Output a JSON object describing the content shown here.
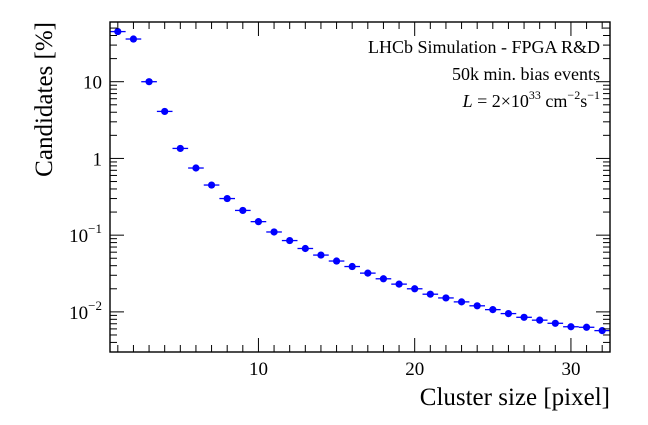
{
  "chart_data": {
    "type": "scatter",
    "xlabel": "Cluster size [pixel]",
    "ylabel": "Candidates [%]",
    "y_scale": "log",
    "xlim": [
      0.5,
      32.5
    ],
    "ylim": [
      0.003,
      60
    ],
    "x_ticks": [
      {
        "value": 10,
        "label": "10"
      },
      {
        "value": 20,
        "label": "20"
      },
      {
        "value": 30,
        "label": "30"
      }
    ],
    "y_ticks": [
      {
        "value": 10,
        "base": "10",
        "exp": ""
      },
      {
        "value": 1,
        "base": "1",
        "exp": ""
      },
      {
        "value": 0.1,
        "base": "10",
        "exp": "−1"
      },
      {
        "value": 0.01,
        "base": "10",
        "exp": "−2"
      }
    ],
    "annotations": {
      "line1": "LHCb Simulation - FPGA R&D",
      "line2": "50k min. bias events",
      "lumi_symbol": "L",
      "lumi_value": " = 2×10",
      "lumi_exp": "33",
      "lumi_unit": " cm",
      "lumi_unit_exp": "−2",
      "lumi_s": "s",
      "lumi_s_exp": "−1"
    },
    "marker_color": "#0000ff",
    "series": [
      {
        "x": [
          1,
          2,
          3,
          4,
          5,
          6,
          7,
          8,
          9,
          10,
          11,
          12,
          13,
          14,
          15,
          16,
          17,
          18,
          19,
          20,
          21,
          22,
          23,
          24,
          25,
          26,
          27,
          28,
          29,
          30,
          31,
          32
        ],
        "values": [
          45,
          36,
          10,
          4.1,
          1.35,
          0.75,
          0.45,
          0.3,
          0.21,
          0.15,
          0.11,
          0.085,
          0.067,
          0.055,
          0.046,
          0.039,
          0.032,
          0.027,
          0.023,
          0.02,
          0.017,
          0.0152,
          0.0135,
          0.012,
          0.0107,
          0.0095,
          0.0085,
          0.0078,
          0.0071,
          0.0064,
          0.0063,
          0.0057
        ]
      }
    ]
  }
}
